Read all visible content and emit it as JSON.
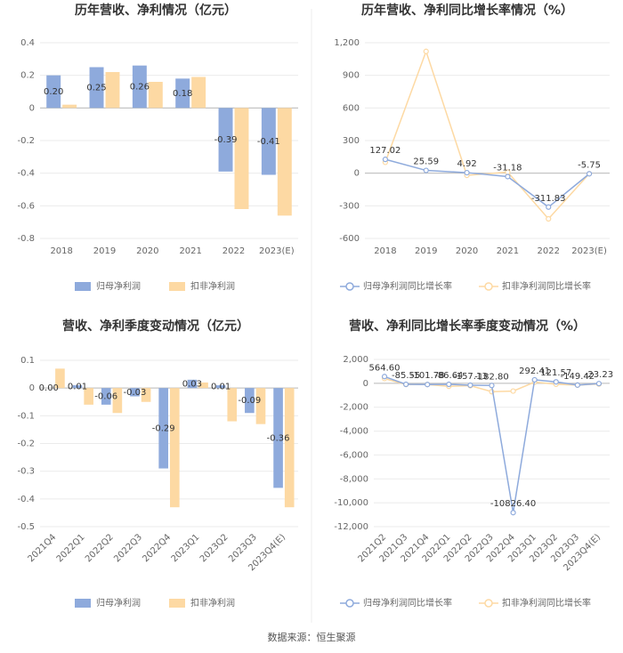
{
  "chart_data": [
    {
      "type": "bar",
      "title": "历年营收、净利情况（亿元）",
      "categories": [
        "2018",
        "2019",
        "2020",
        "2021",
        "2022",
        "2023(E)"
      ],
      "series": [
        {
          "name": "归母净利润",
          "color": "#8eaadc",
          "values": [
            0.2,
            0.25,
            0.26,
            0.18,
            -0.39,
            -0.41
          ],
          "value_labels": [
            "0.20",
            "0.25",
            "0.26",
            "0.18",
            "-0.39",
            "-0.41"
          ]
        },
        {
          "name": "扣非净利润",
          "color": "#fdd9a3",
          "values": [
            0.02,
            0.22,
            0.16,
            0.19,
            -0.62,
            -0.66
          ]
        }
      ],
      "ylim": [
        -0.8,
        0.4
      ],
      "yticks": [
        0.4,
        0.2,
        0,
        -0.2,
        -0.4,
        -0.6,
        -0.8
      ],
      "grid": true
    },
    {
      "type": "line",
      "title": "历年营收、净利同比增长率情况（%）",
      "categories": [
        "2018",
        "2019",
        "2020",
        "2021",
        "2022",
        "2023(E)"
      ],
      "series": [
        {
          "name": "归母净利润同比增长率",
          "color": "#8eaadc",
          "values": [
            127.02,
            25.59,
            4.92,
            -31.18,
            -311.83,
            -5.75
          ]
        },
        {
          "name": "扣非净利润同比增长率",
          "color": "#fdd9a3",
          "values": [
            100,
            1120,
            -20,
            10,
            -420,
            -5
          ]
        }
      ],
      "ylim": [
        -600,
        1200
      ],
      "yticks": [
        {
          "value": 1200,
          "label": "1,200"
        },
        900,
        600,
        300,
        0,
        -300,
        -600
      ],
      "grid": true
    },
    {
      "type": "bar",
      "title": "营收、净利季度变动情况（亿元）",
      "categories": [
        "2021Q4",
        "2022Q1",
        "2022Q2",
        "2022Q3",
        "2022Q4",
        "2023Q1",
        "2023Q2",
        "2023Q3",
        "2023Q4(E)"
      ],
      "series": [
        {
          "name": "归母净利润",
          "color": "#8eaadc",
          "values": [
            0.0,
            0.01,
            -0.06,
            -0.03,
            -0.29,
            0.03,
            0.01,
            -0.09,
            -0.36
          ],
          "value_labels": [
            "0.00",
            "0.01",
            "-0.06",
            "-0.03",
            "-0.29",
            "0.03",
            "0.01",
            "-0.09",
            "-0.36"
          ]
        },
        {
          "name": "扣非净利润",
          "color": "#fdd9a3",
          "values": [
            0.07,
            -0.06,
            -0.09,
            -0.05,
            -0.43,
            0.02,
            -0.12,
            -0.13,
            -0.43
          ]
        }
      ],
      "ylim": [
        -0.5,
        0.1
      ],
      "yticks": [
        0.1,
        0,
        -0.1,
        -0.2,
        -0.3,
        -0.4,
        -0.5
      ],
      "grid": true
    },
    {
      "type": "line",
      "title": "营收、净利同比增长率季度变动情况（%）",
      "categories": [
        "2021Q2",
        "2021Q3",
        "2021Q4",
        "2022Q1",
        "2022Q2",
        "2022Q3",
        "2022Q4",
        "2023Q1",
        "2023Q2",
        "2023Q3",
        "2023Q4(E)"
      ],
      "series": [
        {
          "name": "归母净利润同比增长率",
          "color": "#8eaadc",
          "values": [
            564.6,
            -85.55,
            -101.78,
            -86.64,
            -157.13,
            -182.8,
            -10826.4,
            292.41,
            121.57,
            -149.42,
            -23.23
          ],
          "value_labels": [
            "564.60",
            "-85.55",
            "-101.78",
            "-86.64",
            "-157.13",
            "-182.80",
            "-10826.40",
            "292.41",
            "121.57",
            "-149.42",
            "-23.23"
          ]
        },
        {
          "name": "扣非净利润同比增长率",
          "color": "#fdd9a3",
          "values": [
            400,
            -100,
            -100,
            -250,
            -200,
            -700,
            -650,
            100,
            -80,
            -150,
            -60
          ]
        }
      ],
      "ylim": [
        -12000,
        2000
      ],
      "yticks": [
        {
          "value": 2000,
          "label": "2,000"
        },
        0,
        {
          "value": -2000,
          "label": "-2,000"
        },
        {
          "value": -4000,
          "label": "-4,000"
        },
        {
          "value": -6000,
          "label": "-6,000"
        },
        {
          "value": -8000,
          "label": "-8,000"
        },
        {
          "value": -10000,
          "label": "-10,000"
        },
        {
          "value": -12000,
          "label": "-12,000"
        }
      ],
      "grid": true
    }
  ],
  "source": "数据来源：恒生聚源"
}
